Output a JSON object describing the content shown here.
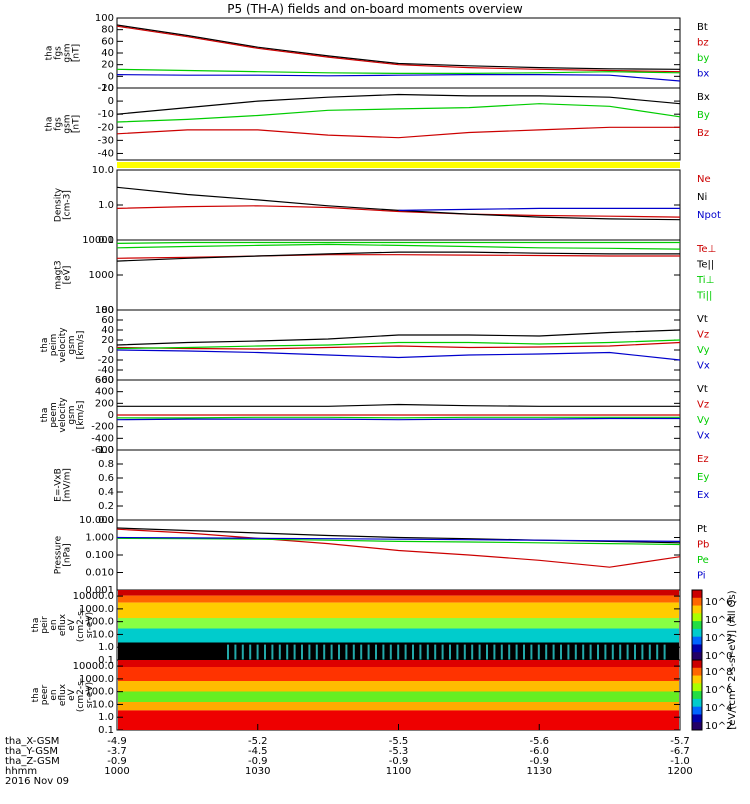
{
  "title": "P5 (TH-A) fields and on-board moments overview",
  "date_label": "2016 Nov 09",
  "colorbar": {
    "label": "[eV/(cm^2-s-sr-eV)] (All Qs)",
    "ion_ticks": [
      "10^6",
      "10^4",
      "10^2",
      "10^0"
    ],
    "electron_ticks": [
      "10^8",
      "10^6",
      "10^4",
      "10^2"
    ]
  },
  "chart_data": [
    {
      "type": "line",
      "panel": "fgs-mag",
      "ylabel": [
        "tha",
        "fgs",
        "gsm",
        "[nT]"
      ],
      "yticks": [
        "100",
        "80",
        "60",
        "40",
        "20",
        "0",
        "-20"
      ],
      "ylim": [
        -20,
        100
      ],
      "legend": [
        {
          "name": "Bt",
          "color": "#000000"
        },
        {
          "name": "bz",
          "color": "#cc0000"
        },
        {
          "name": "by",
          "color": "#00cc00"
        },
        {
          "name": "bx",
          "color": "#0000cc"
        }
      ],
      "x": [
        1000,
        1015,
        1030,
        1045,
        1100,
        1115,
        1130,
        1145,
        1200
      ],
      "series": [
        {
          "name": "Bt",
          "values": [
            88,
            70,
            50,
            35,
            22,
            18,
            15,
            13,
            12
          ]
        },
        {
          "name": "bz",
          "values": [
            86,
            68,
            48,
            33,
            20,
            15,
            12,
            10,
            8
          ]
        },
        {
          "name": "by",
          "values": [
            12,
            10,
            8,
            6,
            5,
            5,
            6,
            8,
            6
          ]
        },
        {
          "name": "bx",
          "values": [
            3,
            2,
            2,
            1,
            2,
            3,
            3,
            2,
            -8
          ]
        }
      ]
    },
    {
      "type": "line",
      "panel": "fgs-mag-zoom",
      "ylabel": [
        "tha",
        "fgs",
        "gsm",
        "[nT]"
      ],
      "yticks": [
        "10",
        "0",
        "-10",
        "-20",
        "-30",
        "-40"
      ],
      "ylim": [
        -45,
        10
      ],
      "legend": [
        {
          "name": "Bx",
          "color": "#000000"
        },
        {
          "name": "By",
          "color": "#00cc00"
        },
        {
          "name": "Bz",
          "color": "#cc0000"
        }
      ],
      "x": [
        1000,
        1015,
        1030,
        1045,
        1100,
        1115,
        1130,
        1145,
        1200
      ],
      "series": [
        {
          "name": "Bx",
          "values": [
            -10,
            -5,
            0,
            3,
            5,
            4,
            4,
            3,
            -2
          ]
        },
        {
          "name": "By",
          "values": [
            -16,
            -14,
            -11,
            -7,
            -6,
            -5,
            -2,
            -4,
            -12
          ]
        },
        {
          "name": "Bz",
          "values": [
            -25,
            -22,
            -22,
            -26,
            -28,
            -24,
            -22,
            -20,
            -20
          ]
        }
      ]
    },
    {
      "type": "line",
      "panel": "density",
      "ylabel": [
        "Density",
        "[cm-3]"
      ],
      "yticks": [
        "10.0",
        "1.0",
        "0.1"
      ],
      "ylim": [
        0.1,
        10
      ],
      "log": true,
      "legend": [
        {
          "name": "Ne",
          "color": "#cc0000"
        },
        {
          "name": "Ni",
          "color": "#000000"
        },
        {
          "name": "Npot",
          "color": "#0000cc"
        }
      ],
      "x": [
        1000,
        1015,
        1030,
        1045,
        1100,
        1115,
        1130,
        1145,
        1200
      ],
      "series": [
        {
          "name": "Ne",
          "values": [
            0.8,
            0.9,
            0.95,
            0.85,
            0.65,
            0.55,
            0.5,
            0.48,
            0.45
          ]
        },
        {
          "name": "Ni",
          "values": [
            3.2,
            2.0,
            1.4,
            0.95,
            0.7,
            0.55,
            0.45,
            0.4,
            0.38
          ]
        },
        {
          "name": "Npot",
          "values": [
            null,
            null,
            null,
            null,
            0.7,
            0.75,
            0.8,
            0.8,
            0.8
          ]
        }
      ]
    },
    {
      "type": "line",
      "panel": "temperature",
      "ylabel": [
        "magt3",
        "[eV]"
      ],
      "yticks": [
        "10000",
        "1000",
        "100"
      ],
      "ylim": [
        100,
        10000
      ],
      "log": true,
      "legend": [
        {
          "name": "Te⊥",
          "color": "#cc0000"
        },
        {
          "name": "Te||",
          "color": "#000000"
        },
        {
          "name": "Ti⊥",
          "color": "#00cc00"
        },
        {
          "name": "Ti||",
          "color": "#00cc00"
        }
      ],
      "x": [
        1000,
        1015,
        1030,
        1045,
        1100,
        1115,
        1130,
        1145,
        1200
      ],
      "series": [
        {
          "name": "Te⊥",
          "values": [
            3000,
            3200,
            3500,
            3800,
            3800,
            3700,
            3600,
            3500,
            3500
          ]
        },
        {
          "name": "Te||",
          "values": [
            2500,
            3000,
            3500,
            4000,
            4500,
            4500,
            4200,
            4000,
            4000
          ]
        },
        {
          "name": "Ti⊥",
          "values": [
            6000,
            6500,
            7000,
            7500,
            7000,
            6500,
            6000,
            5800,
            5500
          ]
        },
        {
          "name": "Ti||",
          "values": [
            8000,
            8500,
            8500,
            8500,
            8500,
            8500,
            8500,
            8500,
            8500
          ]
        }
      ]
    },
    {
      "type": "line",
      "panel": "peim-velocity",
      "ylabel": [
        "tha",
        "peim",
        "velocity",
        "gsm",
        "[km/s]"
      ],
      "yticks": [
        "80",
        "60",
        "40",
        "20",
        "0",
        "-20",
        "-40",
        "-60"
      ],
      "ylim": [
        -60,
        80
      ],
      "legend": [
        {
          "name": "Vt",
          "color": "#000000"
        },
        {
          "name": "Vz",
          "color": "#cc0000"
        },
        {
          "name": "Vy",
          "color": "#00cc00"
        },
        {
          "name": "Vx",
          "color": "#0000cc"
        }
      ],
      "x": [
        1000,
        1015,
        1030,
        1045,
        1100,
        1115,
        1130,
        1145,
        1200
      ],
      "series": [
        {
          "name": "Vt",
          "values": [
            10,
            15,
            18,
            22,
            30,
            30,
            28,
            35,
            40
          ]
        },
        {
          "name": "Vz",
          "values": [
            5,
            3,
            2,
            5,
            8,
            5,
            6,
            8,
            15
          ]
        },
        {
          "name": "Vy",
          "values": [
            3,
            5,
            8,
            10,
            15,
            15,
            12,
            15,
            20
          ]
        },
        {
          "name": "Vx",
          "values": [
            0,
            -2,
            -5,
            -10,
            -15,
            -10,
            -8,
            -5,
            -20
          ]
        }
      ]
    },
    {
      "type": "line",
      "panel": "peem-velocity",
      "ylabel": [
        "tha",
        "peem",
        "velocity",
        "gsm",
        "[km/s]"
      ],
      "yticks": [
        "600",
        "400",
        "200",
        "0",
        "-200",
        "-400",
        "-600"
      ],
      "ylim": [
        -600,
        600
      ],
      "legend": [
        {
          "name": "Vt",
          "color": "#000000"
        },
        {
          "name": "Vz",
          "color": "#cc0000"
        },
        {
          "name": "Vy",
          "color": "#00cc00"
        },
        {
          "name": "Vx",
          "color": "#0000cc"
        }
      ],
      "x": [
        1000,
        1015,
        1030,
        1045,
        1100,
        1115,
        1130,
        1145,
        1200
      ],
      "series": [
        {
          "name": "Vt",
          "values": [
            150,
            150,
            150,
            150,
            180,
            160,
            150,
            150,
            150
          ]
        },
        {
          "name": "Vz",
          "values": [
            0,
            0,
            0,
            0,
            0,
            0,
            0,
            0,
            0
          ]
        },
        {
          "name": "Vy",
          "values": [
            -50,
            -50,
            -40,
            -40,
            -50,
            -40,
            -40,
            -40,
            -40
          ]
        },
        {
          "name": "Vx",
          "values": [
            -80,
            -70,
            -70,
            -70,
            -80,
            -70,
            -70,
            -60,
            -60
          ]
        }
      ]
    },
    {
      "type": "line",
      "panel": "efield",
      "ylabel": [
        "E=-VxB",
        "[mV/m]"
      ],
      "yticks": [
        "1.0",
        "0.8",
        "0.6",
        "0.4",
        "0.2",
        "0.0"
      ],
      "ylim": [
        0,
        1
      ],
      "legend": [
        {
          "name": "Ez",
          "color": "#cc0000"
        },
        {
          "name": "Ey",
          "color": "#00cc00"
        },
        {
          "name": "Ex",
          "color": "#0000cc"
        }
      ],
      "x": [],
      "series": []
    },
    {
      "type": "line",
      "panel": "pressure",
      "ylabel": [
        "Pressure",
        "[nPa]"
      ],
      "yticks": [
        "10.000",
        "1.000",
        "0.100",
        "0.010",
        "0.001"
      ],
      "ylim": [
        0.001,
        10
      ],
      "log": true,
      "legend": [
        {
          "name": "Pt",
          "color": "#000000"
        },
        {
          "name": "Pb",
          "color": "#cc0000"
        },
        {
          "name": "Pe",
          "color": "#00cc00"
        },
        {
          "name": "Pi",
          "color": "#0000cc"
        }
      ],
      "x": [
        1000,
        1015,
        1030,
        1045,
        1100,
        1115,
        1130,
        1145,
        1200
      ],
      "series": [
        {
          "name": "Pt",
          "values": [
            3.5,
            2.5,
            1.8,
            1.3,
            1.0,
            0.85,
            0.7,
            0.6,
            0.5
          ]
        },
        {
          "name": "Pb",
          "values": [
            3.0,
            1.8,
            0.9,
            0.45,
            0.18,
            0.1,
            0.05,
            0.02,
            0.08
          ]
        },
        {
          "name": "Pe",
          "values": [
            0.9,
            0.85,
            0.8,
            0.7,
            0.6,
            0.55,
            0.5,
            0.45,
            0.4
          ]
        },
        {
          "name": "Pi",
          "values": [
            1.0,
            0.95,
            0.9,
            0.85,
            0.8,
            0.75,
            0.7,
            0.65,
            0.6
          ]
        }
      ]
    },
    {
      "type": "heatmap",
      "panel": "peir-spectrogram",
      "ylabel": [
        "tha",
        "peir",
        "en",
        "eflux",
        "eV",
        "(cm2-s-",
        "sr-eV)"
      ],
      "yticks": [
        "10000.0",
        "1000.0",
        "100.0",
        "10.0",
        "1.0",
        "0.1"
      ],
      "ylim": [
        0.1,
        30000
      ],
      "log": true
    },
    {
      "type": "heatmap",
      "panel": "peer-spectrogram",
      "ylabel": [
        "tha",
        "peer",
        "en",
        "eflux",
        "eV",
        "(cm2-s-",
        "sr-eV)"
      ],
      "yticks": [
        "10000.0",
        "1000.0",
        "100.0",
        "10.0",
        "1.0",
        "0.1"
      ],
      "ylim": [
        0.1,
        30000
      ],
      "log": true
    }
  ],
  "x_axis": {
    "rows": [
      {
        "label": "tha_X-GSM",
        "values": [
          "-4.9",
          "-5.2",
          "-5.5",
          "-5.6",
          "-5.7"
        ]
      },
      {
        "label": "tha_Y-GSM",
        "values": [
          "-3.7",
          "-4.5",
          "-5.3",
          "-6.0",
          "-6.7"
        ]
      },
      {
        "label": "tha_Z-GSM",
        "values": [
          "-0.9",
          "-0.9",
          "-0.9",
          "-0.9",
          "-1.0"
        ]
      },
      {
        "label": "hhmm",
        "values": [
          "1000",
          "1030",
          "1100",
          "1130",
          "1200"
        ]
      }
    ]
  }
}
